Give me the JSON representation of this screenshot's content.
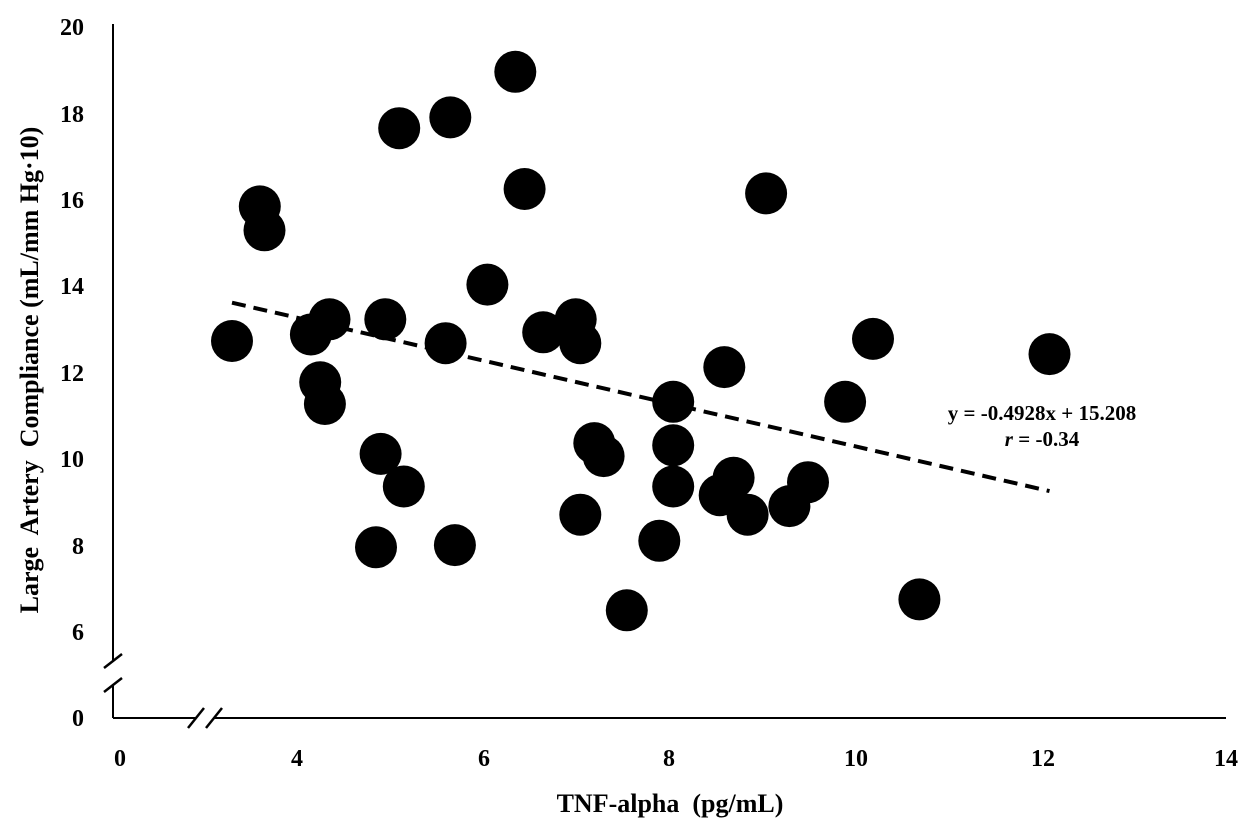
{
  "chart_data": {
    "type": "scatter",
    "title": "",
    "xlabel": "TNF-alpha  (pg/mL)",
    "ylabel": "Large  Artery  Compliance (mL/mm Hg·10)",
    "x_ticks": [
      "0",
      "4",
      "6",
      "8",
      "10",
      "12",
      "14"
    ],
    "y_ticks": [
      "0",
      "6",
      "8",
      "10",
      "12",
      "14",
      "16",
      "18",
      "20"
    ],
    "x_range": [
      2,
      14
    ],
    "y_range": [
      5,
      20
    ],
    "axis_breaks": [
      "x",
      "y"
    ],
    "grid": false,
    "legend": "none",
    "marker_color": "#000000",
    "points": [
      [
        3.3,
        12.7
      ],
      [
        3.6,
        15.8
      ],
      [
        3.65,
        15.25
      ],
      [
        4.15,
        12.85
      ],
      [
        4.25,
        11.75
      ],
      [
        4.3,
        11.25
      ],
      [
        4.35,
        13.2
      ],
      [
        4.85,
        7.95
      ],
      [
        4.9,
        10.1
      ],
      [
        4.95,
        13.2
      ],
      [
        5.1,
        17.6
      ],
      [
        5.15,
        9.35
      ],
      [
        5.6,
        12.65
      ],
      [
        5.65,
        17.85
      ],
      [
        5.7,
        8.0
      ],
      [
        6.05,
        14.0
      ],
      [
        6.35,
        18.9
      ],
      [
        6.45,
        16.2
      ],
      [
        6.65,
        12.9
      ],
      [
        7.0,
        13.2
      ],
      [
        7.05,
        12.65
      ],
      [
        7.05,
        8.7
      ],
      [
        7.2,
        10.35
      ],
      [
        7.3,
        10.05
      ],
      [
        7.55,
        6.5
      ],
      [
        7.9,
        8.1
      ],
      [
        8.05,
        11.3
      ],
      [
        8.05,
        10.3
      ],
      [
        8.05,
        9.35
      ],
      [
        8.55,
        9.15
      ],
      [
        8.6,
        12.1
      ],
      [
        8.7,
        9.55
      ],
      [
        8.85,
        8.7
      ],
      [
        9.05,
        16.1
      ],
      [
        9.3,
        8.9
      ],
      [
        9.5,
        9.45
      ],
      [
        9.9,
        11.3
      ],
      [
        10.2,
        12.75
      ],
      [
        10.7,
        6.75
      ],
      [
        12.1,
        12.4
      ]
    ],
    "trendline": {
      "style": "dashed",
      "slope": -0.4928,
      "intercept": 15.208,
      "x_start": 3.3,
      "x_end": 12.1
    },
    "annotations": {
      "equation": "y = -0.4928x + 15.208",
      "r_symbol": "r",
      "r_value": " = -0.34"
    }
  }
}
